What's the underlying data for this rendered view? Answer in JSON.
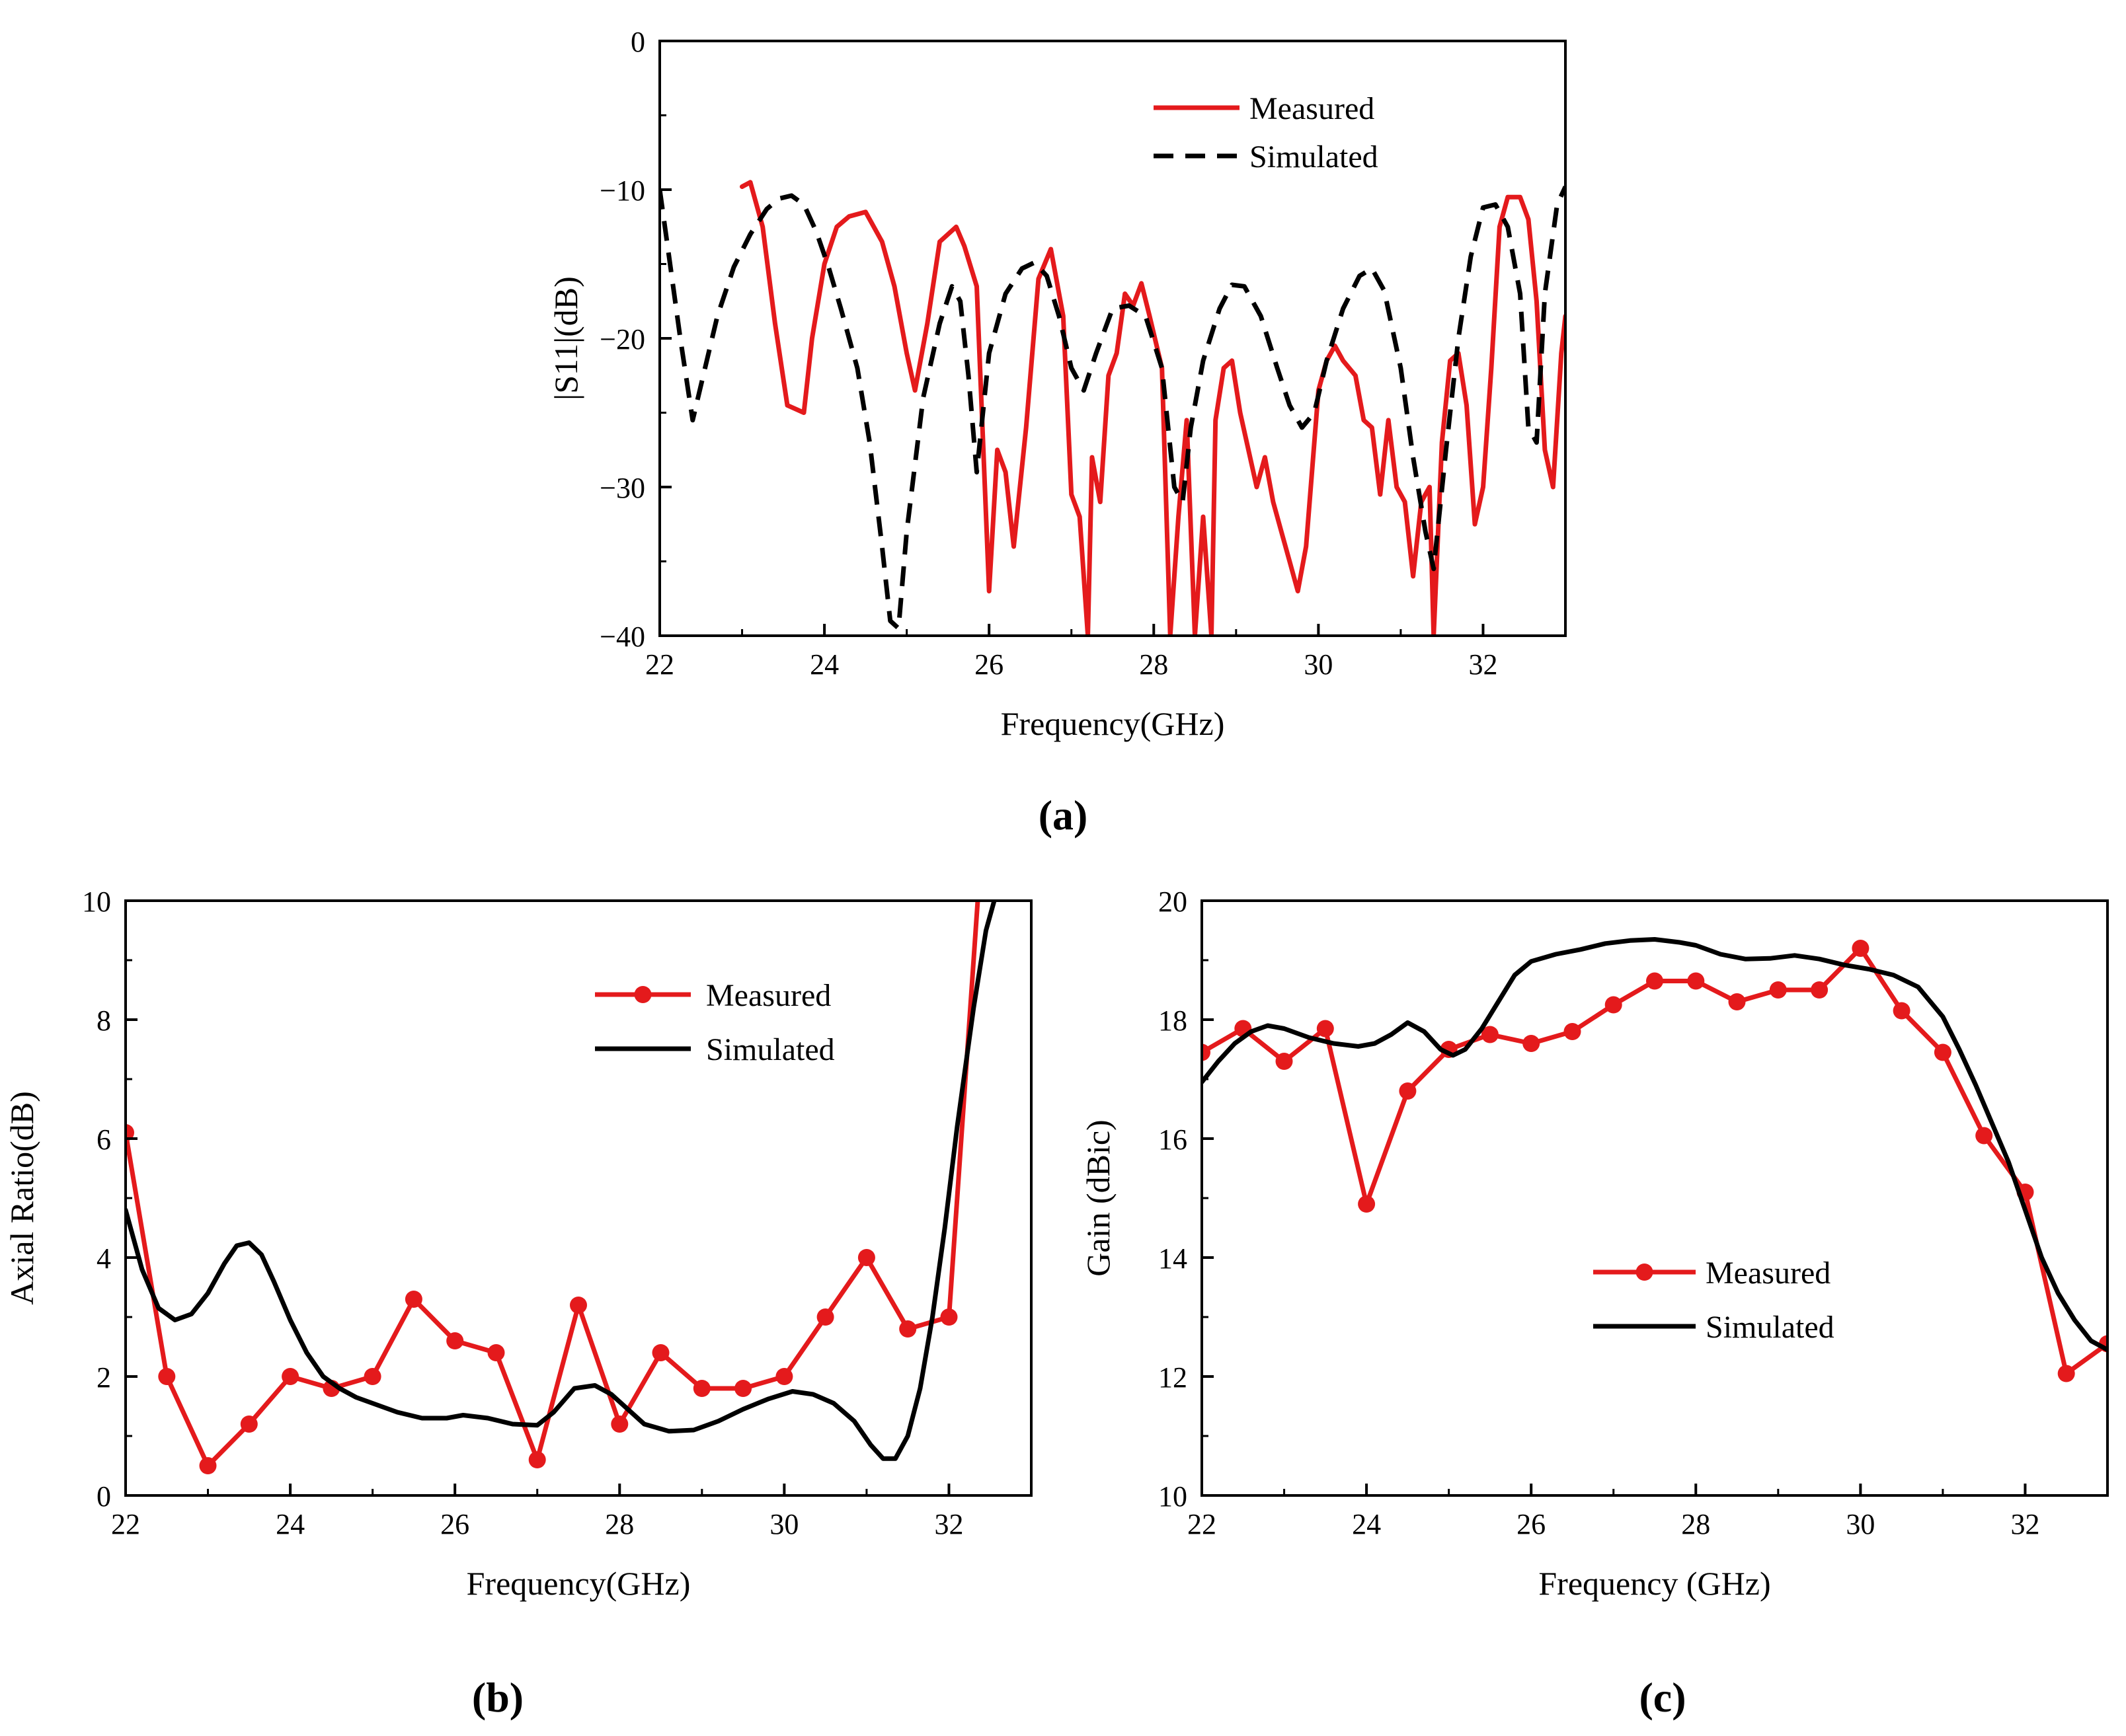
{
  "colors": {
    "measured": "#e41a1c",
    "simulated": "#000000",
    "axis": "#000000"
  },
  "chart_data": [
    {
      "type": "line",
      "panel_label": "(a)",
      "xlabel": "Frequency(GHz)",
      "ylabel": "|S11|(dB)",
      "xlim": [
        22,
        33
      ],
      "ylim": [
        -40,
        0
      ],
      "xticks": [
        22,
        24,
        26,
        28,
        30,
        32
      ],
      "xtick_labels": [
        "22",
        "24",
        "26",
        "28",
        "30",
        "32"
      ],
      "yticks": [
        -40,
        -30,
        -20,
        -10,
        0
      ],
      "ytick_labels": [
        "−40",
        "−30",
        "−20",
        "−10",
        "0"
      ],
      "legend": {
        "position": "top-right",
        "entries": [
          "Measured",
          "Simulated"
        ]
      },
      "series": [
        {
          "name": "Measured",
          "style": "solid",
          "color": "#e41a1c",
          "markers": false,
          "x": [
            23.0,
            23.1,
            23.25,
            23.4,
            23.55,
            23.75,
            23.85,
            24.0,
            24.15,
            24.3,
            24.5,
            24.7,
            24.85,
            25.0,
            25.1,
            25.25,
            25.4,
            25.6,
            25.7,
            25.85,
            26.0,
            26.1,
            26.2,
            26.3,
            26.45,
            26.6,
            26.75,
            26.9,
            27.0,
            27.1,
            27.2,
            27.25,
            27.35,
            27.45,
            27.55,
            27.65,
            27.75,
            27.85,
            27.95,
            28.1,
            28.2,
            28.3,
            28.4,
            28.5,
            28.6,
            28.7,
            28.75,
            28.85,
            28.95,
            29.05,
            29.15,
            29.25,
            29.35,
            29.45,
            29.55,
            29.65,
            29.75,
            29.85,
            30.0,
            30.1,
            30.2,
            30.3,
            30.45,
            30.55,
            30.65,
            30.75,
            30.85,
            30.95,
            31.05,
            31.15,
            31.25,
            31.35,
            31.4,
            31.5,
            31.6,
            31.7,
            31.8,
            31.9,
            32.0,
            32.1,
            32.2,
            32.3,
            32.45,
            32.55,
            32.65,
            32.75,
            32.85,
            32.95,
            33.0
          ],
          "y": [
            -9.8,
            -9.5,
            -12.5,
            -19,
            -24.5,
            -25,
            -20,
            -15,
            -12.5,
            -11.8,
            -11.5,
            -13.5,
            -16.5,
            -21,
            -23.5,
            -19,
            -13.5,
            -12.5,
            -13.8,
            -16.5,
            -37,
            -27.5,
            -29,
            -34,
            -26,
            -16,
            -14,
            -18.5,
            -30.5,
            -32,
            -40,
            -28,
            -31,
            -22.5,
            -21,
            -17,
            -17.8,
            -16.3,
            -18.5,
            -22,
            -40,
            -32,
            -25.5,
            -40,
            -32,
            -40,
            -25.5,
            -22,
            -21.5,
            -25,
            -27.5,
            -30,
            -28,
            -31,
            -33,
            -35,
            -37,
            -34,
            -23.5,
            -21.5,
            -20.5,
            -21.5,
            -22.5,
            -25.5,
            -26,
            -30.5,
            -25.5,
            -30,
            -31,
            -36,
            -31,
            -30,
            -40,
            -27,
            -21.5,
            -21,
            -24.5,
            -32.5,
            -30,
            -22,
            -12.5,
            -10.5,
            -10.5,
            -12,
            -17.5,
            -27.5,
            -30,
            -21,
            -18.5
          ]
        },
        {
          "name": "Simulated",
          "style": "dashed",
          "color": "#000000",
          "markers": false,
          "x": [
            22.0,
            22.1,
            22.25,
            22.4,
            22.55,
            22.7,
            22.9,
            23.1,
            23.3,
            23.45,
            23.6,
            23.75,
            23.9,
            24.05,
            24.2,
            24.4,
            24.55,
            24.7,
            24.8,
            24.9,
            25.0,
            25.2,
            25.4,
            25.55,
            25.65,
            25.75,
            25.85,
            26.0,
            26.2,
            26.4,
            26.55,
            26.7,
            26.85,
            27.0,
            27.15,
            27.3,
            27.5,
            27.7,
            27.9,
            28.1,
            28.25,
            28.35,
            28.45,
            28.6,
            28.8,
            28.95,
            29.1,
            29.3,
            29.5,
            29.65,
            29.8,
            29.95,
            30.1,
            30.3,
            30.5,
            30.65,
            30.8,
            31.0,
            31.15,
            31.3,
            31.4,
            31.55,
            31.7,
            31.85,
            32.0,
            32.15,
            32.3,
            32.45,
            32.55,
            32.65,
            32.75,
            32.9,
            33.0
          ],
          "y": [
            -10,
            -14,
            -20,
            -25.5,
            -22,
            -18.5,
            -15.2,
            -13,
            -11.3,
            -10.6,
            -10.4,
            -11,
            -12.8,
            -15.2,
            -18,
            -22,
            -27,
            -34,
            -39,
            -39.5,
            -33,
            -24,
            -19,
            -16.5,
            -17.5,
            -22.5,
            -29,
            -21,
            -17,
            -15.3,
            -14.9,
            -15.8,
            -18.5,
            -22,
            -23.5,
            -21,
            -18,
            -17.8,
            -18.5,
            -22,
            -30,
            -31,
            -26,
            -21.5,
            -18,
            -16.4,
            -16.5,
            -18.5,
            -22,
            -24.5,
            -26,
            -25,
            -21.5,
            -18,
            -15.8,
            -15.3,
            -16.8,
            -22,
            -28,
            -33,
            -35.5,
            -27.5,
            -20,
            -14.5,
            -11.2,
            -11,
            -12.5,
            -17,
            -26,
            -27,
            -17,
            -11,
            -9.8
          ]
        }
      ]
    },
    {
      "type": "line",
      "panel_label": "(b)",
      "xlabel": "Frequency(GHz)",
      "ylabel": "Axial Ratio(dB)",
      "xlim": [
        22,
        33
      ],
      "ylim": [
        0,
        10
      ],
      "xticks": [
        22,
        24,
        26,
        28,
        30,
        32
      ],
      "xtick_labels": [
        "22",
        "24",
        "26",
        "28",
        "30",
        "32"
      ],
      "yticks": [
        0,
        2,
        4,
        6,
        8,
        10
      ],
      "ytick_labels": [
        "0",
        "2",
        "4",
        "6",
        "8",
        "10"
      ],
      "legend": {
        "position": "top-right",
        "entries": [
          "Measured",
          "Simulated"
        ]
      },
      "series": [
        {
          "name": "Measured",
          "style": "solid",
          "color": "#e41a1c",
          "markers": true,
          "x": [
            22.0,
            22.5,
            23.0,
            23.5,
            24.0,
            24.5,
            25.0,
            25.5,
            26.0,
            26.5,
            27.0,
            27.5,
            28.0,
            28.5,
            29.0,
            29.5,
            30.0,
            30.5,
            31.0,
            31.5,
            32.0,
            32.35
          ],
          "y": [
            6.1,
            2.0,
            0.5,
            1.2,
            2.0,
            1.8,
            2.0,
            3.3,
            2.6,
            2.4,
            0.6,
            3.2,
            1.2,
            2.4,
            1.8,
            1.8,
            2.0,
            3.0,
            4.0,
            2.8,
            3.0,
            10.0
          ],
          "marker_count": 21
        },
        {
          "name": "Simulated",
          "style": "solid",
          "color": "#000000",
          "markers": false,
          "x": [
            22.0,
            22.2,
            22.4,
            22.6,
            22.8,
            23.0,
            23.2,
            23.35,
            23.5,
            23.65,
            23.8,
            24.0,
            24.2,
            24.4,
            24.6,
            24.8,
            25.0,
            25.3,
            25.6,
            25.9,
            26.1,
            26.4,
            26.7,
            27.0,
            27.2,
            27.45,
            27.7,
            27.9,
            28.1,
            28.3,
            28.6,
            28.9,
            29.2,
            29.5,
            29.8,
            30.1,
            30.35,
            30.6,
            30.85,
            31.05,
            31.2,
            31.35,
            31.5,
            31.65,
            31.8,
            31.95,
            32.1,
            32.3,
            32.45,
            32.55
          ],
          "y": [
            4.8,
            3.8,
            3.15,
            2.95,
            3.05,
            3.4,
            3.9,
            4.2,
            4.25,
            4.05,
            3.6,
            2.95,
            2.4,
            2.0,
            1.8,
            1.65,
            1.55,
            1.4,
            1.3,
            1.3,
            1.35,
            1.3,
            1.2,
            1.18,
            1.4,
            1.8,
            1.85,
            1.7,
            1.45,
            1.2,
            1.08,
            1.1,
            1.25,
            1.45,
            1.62,
            1.75,
            1.7,
            1.55,
            1.25,
            0.85,
            0.62,
            0.62,
            1.0,
            1.8,
            3.0,
            4.5,
            6.2,
            8.2,
            9.5,
            10.0
          ]
        }
      ]
    },
    {
      "type": "line",
      "panel_label": "(c)",
      "xlabel": "Frequency (GHz)",
      "ylabel": "Gain (dBic)",
      "xlim": [
        22,
        33
      ],
      "ylim": [
        10,
        20
      ],
      "xticks": [
        22,
        24,
        26,
        28,
        30,
        32
      ],
      "xtick_labels": [
        "22",
        "24",
        "26",
        "28",
        "30",
        "32"
      ],
      "yticks": [
        10,
        12,
        14,
        16,
        18,
        20
      ],
      "ytick_labels": [
        "10",
        "12",
        "14",
        "16",
        "18",
        "20"
      ],
      "legend": {
        "position": "bottom-center",
        "entries": [
          "Measured",
          "Simulated"
        ]
      },
      "series": [
        {
          "name": "Measured",
          "style": "solid",
          "color": "#e41a1c",
          "markers": true,
          "x": [
            22.0,
            22.5,
            23.0,
            23.5,
            24.0,
            24.5,
            25.0,
            25.5,
            26.0,
            26.5,
            27.0,
            27.5,
            28.0,
            28.5,
            29.0,
            29.5,
            30.0,
            30.5,
            31.0,
            31.5,
            32.0,
            32.5,
            33.0
          ],
          "y": [
            17.45,
            17.85,
            17.3,
            17.85,
            14.9,
            16.8,
            17.5,
            17.75,
            17.6,
            17.8,
            18.25,
            18.65,
            18.65,
            18.3,
            18.5,
            18.5,
            19.2,
            18.15,
            17.45,
            16.05,
            15.1,
            12.05,
            12.55
          ]
        },
        {
          "name": "Simulated",
          "style": "solid",
          "color": "#000000",
          "markers": false,
          "x": [
            22.0,
            22.2,
            22.4,
            22.6,
            22.8,
            23.0,
            23.3,
            23.6,
            23.9,
            24.1,
            24.3,
            24.5,
            24.7,
            24.9,
            25.05,
            25.2,
            25.4,
            25.6,
            25.8,
            26.0,
            26.3,
            26.6,
            26.9,
            27.2,
            27.5,
            27.8,
            28.0,
            28.3,
            28.6,
            28.9,
            29.2,
            29.5,
            29.8,
            30.1,
            30.4,
            30.7,
            31.0,
            31.2,
            31.4,
            31.6,
            31.8,
            32.0,
            32.2,
            32.4,
            32.6,
            32.8,
            33.0
          ],
          "y": [
            16.95,
            17.3,
            17.6,
            17.8,
            17.9,
            17.85,
            17.7,
            17.6,
            17.55,
            17.6,
            17.75,
            17.95,
            17.8,
            17.5,
            17.4,
            17.5,
            17.85,
            18.3,
            18.75,
            18.98,
            19.1,
            19.18,
            19.28,
            19.33,
            19.35,
            19.3,
            19.25,
            19.1,
            19.02,
            19.03,
            19.08,
            19.02,
            18.92,
            18.85,
            18.75,
            18.55,
            18.05,
            17.5,
            16.9,
            16.25,
            15.6,
            14.8,
            14.0,
            13.4,
            12.95,
            12.6,
            12.45
          ]
        }
      ]
    }
  ]
}
